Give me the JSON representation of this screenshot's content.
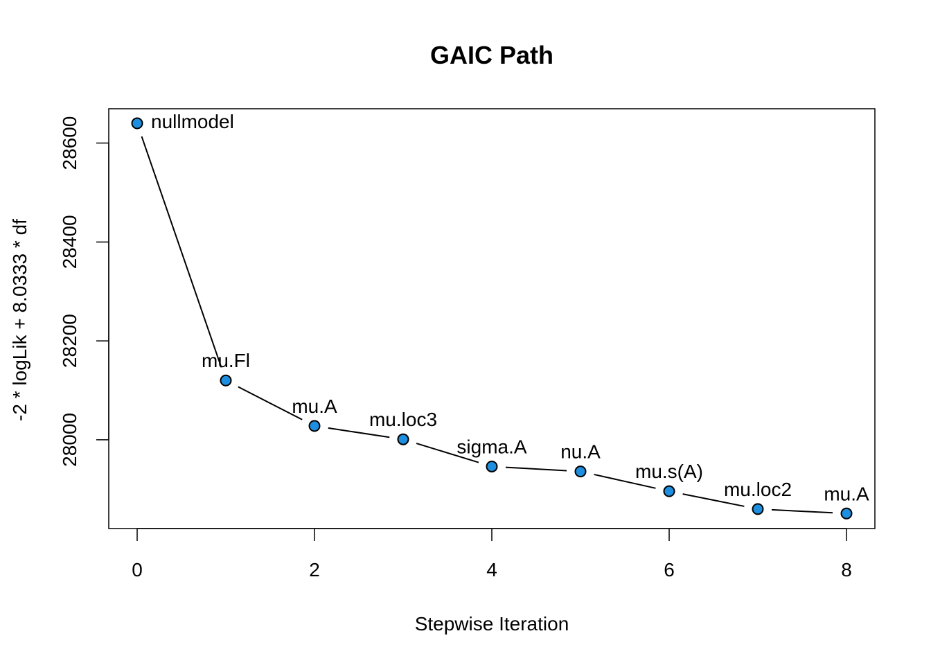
{
  "chart_data": {
    "type": "line",
    "title": "GAIC Path",
    "xlabel": "Stepwise Iteration",
    "ylabel": "-2 * logLik + 8.0333 * df",
    "xlim": [
      0,
      8
    ],
    "ylim": [
      27850,
      28640
    ],
    "xticks": [
      0,
      2,
      4,
      6,
      8
    ],
    "yticks": [
      28000,
      28200,
      28400,
      28600
    ],
    "grid": false,
    "legend": "none",
    "point_color": "#1e8fe0",
    "points": [
      {
        "x": 0,
        "y": 28640,
        "label": "nullmodel"
      },
      {
        "x": 1,
        "y": 28120,
        "label": "mu.Fl"
      },
      {
        "x": 2,
        "y": 28028,
        "label": "mu.A"
      },
      {
        "x": 3,
        "y": 28001,
        "label": "mu.loc3"
      },
      {
        "x": 4,
        "y": 27946,
        "label": "sigma.A"
      },
      {
        "x": 5,
        "y": 27936,
        "label": "nu.A"
      },
      {
        "x": 6,
        "y": 27896,
        "label": "mu.s(A)"
      },
      {
        "x": 7,
        "y": 27860,
        "label": "mu.loc2"
      },
      {
        "x": 8,
        "y": 27851,
        "label": "mu.A"
      }
    ]
  }
}
